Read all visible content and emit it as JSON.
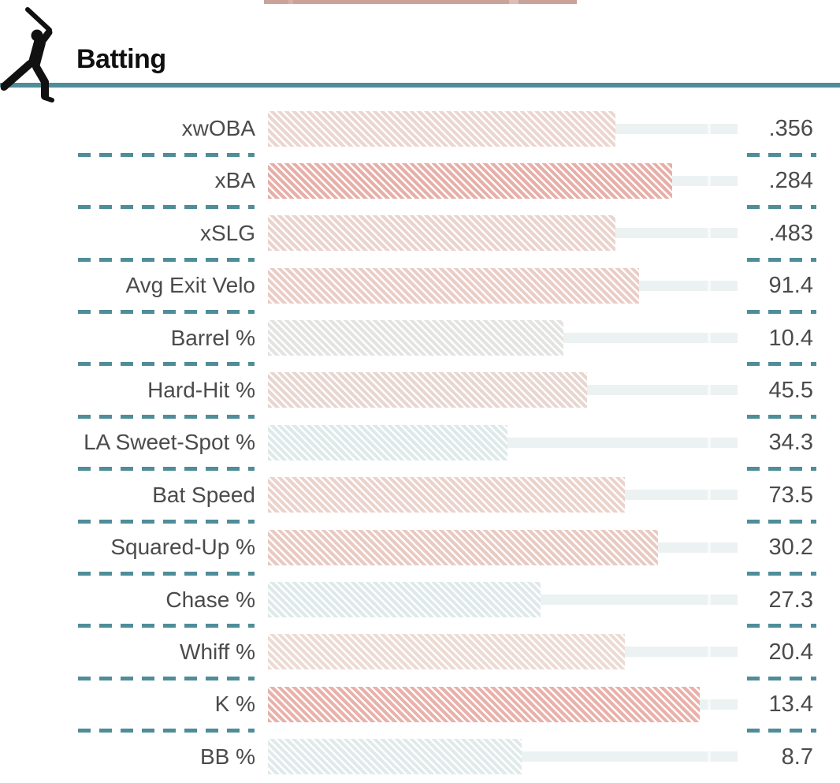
{
  "page": {
    "section_title": "Batting",
    "accent_color": "#4f8d99",
    "track_color": "#ecf1f1",
    "text_color": "#4b4b4b",
    "icons": {
      "batter": "batter-swinging-silhouette"
    }
  },
  "top_fragment": {
    "color": "#c9a29a"
  },
  "stats": [
    {
      "label": "xwOBA",
      "value": ".356",
      "percentile": 74,
      "color": "#ecd6d0"
    },
    {
      "label": "xBA",
      "value": ".284",
      "percentile": 86,
      "color": "#e7afa8"
    },
    {
      "label": "xSLG",
      "value": ".483",
      "percentile": 74,
      "color": "#ebd3cd"
    },
    {
      "label": "Avg Exit Velo",
      "value": "91.4",
      "percentile": 79,
      "color": "#eacdc6"
    },
    {
      "label": "Barrel %",
      "value": "10.4",
      "percentile": 63,
      "color": "#e3e4e1"
    },
    {
      "label": "Hard-Hit %",
      "value": "45.5",
      "percentile": 68,
      "color": "#e8d6d1"
    },
    {
      "label": "LA Sweet-Spot %",
      "value": "34.3",
      "percentile": 51,
      "color": "#dee9e9"
    },
    {
      "label": "Bat Speed",
      "value": "73.5",
      "percentile": 76,
      "color": "#ebd2cb"
    },
    {
      "label": "Squared-Up %",
      "value": "30.2",
      "percentile": 83,
      "color": "#e9cac2"
    },
    {
      "label": "Chase %",
      "value": "27.3",
      "percentile": 58,
      "color": "#dfe9ea"
    },
    {
      "label": "Whiff %",
      "value": "20.4",
      "percentile": 76,
      "color": "#eddbd3"
    },
    {
      "label": "K %",
      "value": "13.4",
      "percentile": 92,
      "color": "#e9b1aa"
    },
    {
      "label": "BB %",
      "value": "8.7",
      "percentile": 54,
      "color": "#e1eaea"
    }
  ],
  "chart_data": {
    "type": "bar",
    "orientation": "horizontal",
    "title": "Batting",
    "categories": [
      "xwOBA",
      "xBA",
      "xSLG",
      "Avg Exit Velo",
      "Barrel %",
      "Hard-Hit %",
      "LA Sweet-Spot %",
      "Bat Speed",
      "Squared-Up %",
      "Chase %",
      "Whiff %",
      "K %",
      "BB %"
    ],
    "series": [
      {
        "name": "stat_value",
        "values": [
          0.356,
          0.284,
          0.483,
          91.4,
          10.4,
          45.5,
          34.3,
          73.5,
          30.2,
          27.3,
          20.4,
          13.4,
          8.7
        ]
      },
      {
        "name": "percentile_bar_length",
        "values": [
          74,
          86,
          74,
          79,
          63,
          68,
          51,
          76,
          83,
          58,
          76,
          92,
          54
        ]
      }
    ],
    "xlim": [
      0,
      100
    ],
    "grid": false,
    "legend": false,
    "style_note": "diagonal-hatched percentile bars on light track; red=high, gray=mid, blue=low"
  }
}
